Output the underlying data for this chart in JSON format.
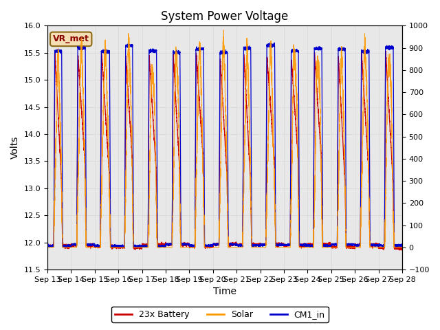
{
  "title": "System Power Voltage",
  "xlabel": "Time",
  "ylabel_left": "Volts",
  "ylim_left": [
    11.5,
    16.0
  ],
  "ylim_right": [
    -100,
    1000
  ],
  "yticks_left": [
    11.5,
    12.0,
    12.5,
    13.0,
    13.5,
    14.0,
    14.5,
    15.0,
    15.5,
    16.0
  ],
  "yticks_right": [
    -100,
    0,
    100,
    200,
    300,
    400,
    500,
    600,
    700,
    800,
    900,
    1000
  ],
  "x_tick_labels": [
    "Sep 13",
    "Sep 14",
    "Sep 15",
    "Sep 16",
    "Sep 17",
    "Sep 18",
    "Sep 19",
    "Sep 20",
    "Sep 21",
    "Sep 22",
    "Sep 23",
    "Sep 24",
    "Sep 25",
    "Sep 26",
    "Sep 27",
    "Sep 28"
  ],
  "legend_labels": [
    "23x Battery",
    "Solar",
    "CM1_in"
  ],
  "legend_colors": [
    "#cc0000",
    "#ff9900",
    "#0000cc"
  ],
  "annotation_text": "VR_met",
  "annotation_color": "#8b0000",
  "annotation_box_facecolor": "#f5deb3",
  "annotation_box_edgecolor": "#8b6914",
  "grid_color": "#d8d8d8",
  "background_color": "#e8e8e8",
  "days": 15
}
